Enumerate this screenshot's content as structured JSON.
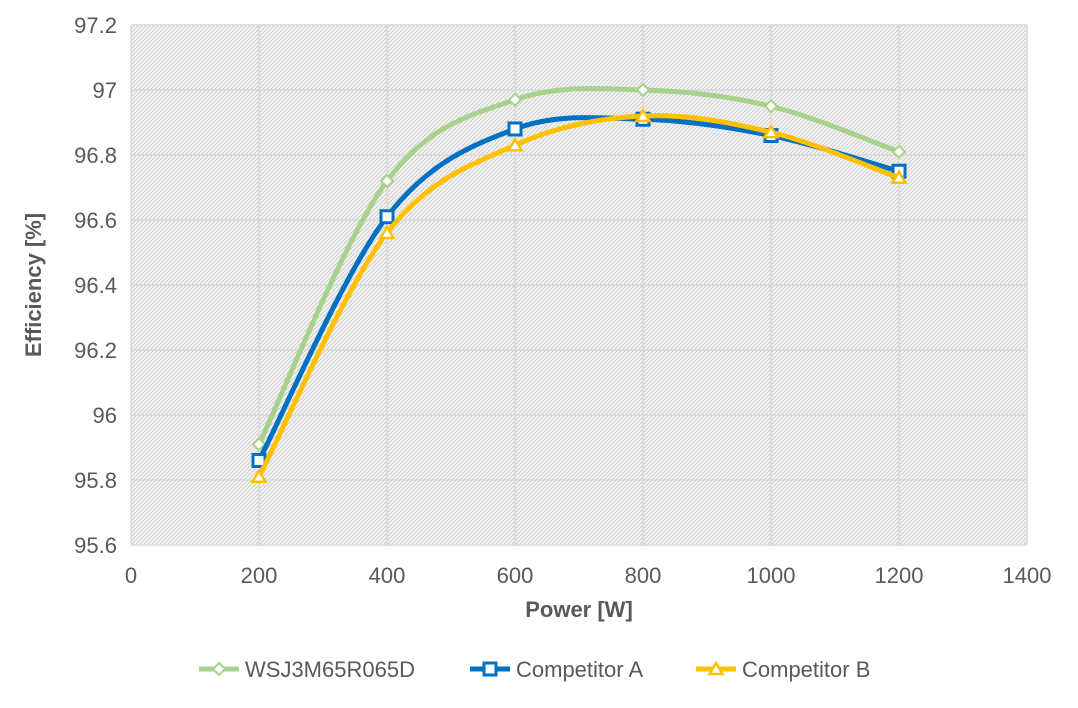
{
  "chart_data": {
    "type": "line",
    "title": "",
    "xlabel": "Power [W]",
    "ylabel": "Efficiency [%]",
    "xlim": [
      0,
      1400
    ],
    "ylim": [
      95.6,
      97.2
    ],
    "xticks": [
      0,
      200,
      400,
      600,
      800,
      1000,
      1200,
      1400
    ],
    "xtick_labels": [
      "0",
      "200",
      "400",
      "600",
      "800",
      "1000",
      "1200",
      "1400"
    ],
    "yticks": [
      95.6,
      95.8,
      96.0,
      96.2,
      96.4,
      96.6,
      96.8,
      97.0,
      97.2
    ],
    "ytick_labels": [
      "95.6",
      "95.8",
      "96",
      "96.2",
      "96.4",
      "96.6",
      "96.8",
      "97",
      "97.2"
    ],
    "grid": true,
    "legend_position": "bottom",
    "x": [
      200,
      400,
      600,
      800,
      1000,
      1200
    ],
    "series": [
      {
        "name": "WSJ3M65R065D",
        "values": [
          95.91,
          96.72,
          96.97,
          97.0,
          96.95,
          96.81
        ],
        "color": "#a9d18e",
        "marker": "diamond"
      },
      {
        "name": "Competitor A",
        "values": [
          95.86,
          96.61,
          96.88,
          96.91,
          96.86,
          96.75
        ],
        "color": "#0070c0",
        "marker": "square"
      },
      {
        "name": "Competitor B",
        "values": [
          95.81,
          96.56,
          96.83,
          96.92,
          96.87,
          96.73
        ],
        "color": "#ffc000",
        "marker": "triangle"
      }
    ]
  }
}
